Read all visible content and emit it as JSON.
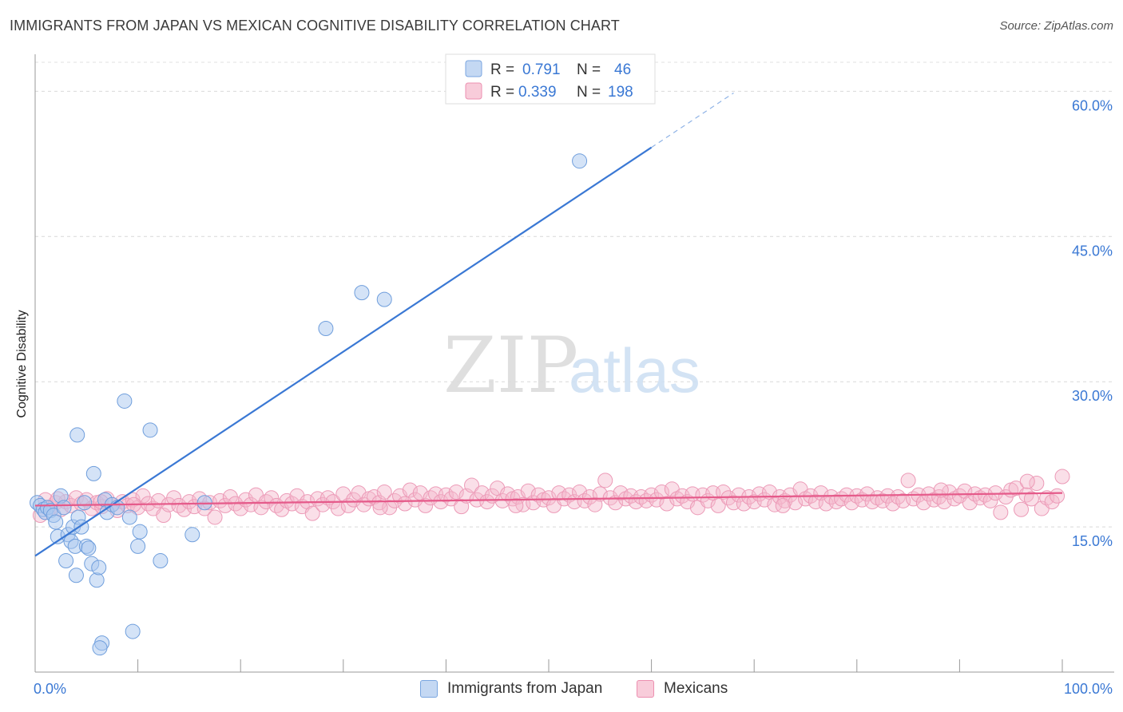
{
  "title": "IMMIGRANTS FROM JAPAN VS MEXICAN COGNITIVE DISABILITY CORRELATION CHART",
  "source": "Source: ZipAtlas.com",
  "watermark": {
    "zip": "ZIP",
    "atlas": "atlas"
  },
  "colors": {
    "blue": "#3a78d4",
    "blue_fill": "#a9c8f0",
    "pink": "#e55a8a",
    "pink_fill": "#f5b8cc",
    "axis_text": "#3a78d4",
    "grid": "#d8d8d8"
  },
  "legend_top": [
    {
      "r_label": "R =",
      "r_value": "0.791",
      "n_label": "N =",
      "n_value": "46"
    },
    {
      "r_label": "R =",
      "r_value": "0.339",
      "n_label": "N =",
      "n_value": "198"
    }
  ],
  "chart_data": {
    "type": "scatter",
    "title": "IMMIGRANTS FROM JAPAN VS MEXICAN COGNITIVE DISABILITY CORRELATION CHART",
    "xlabel": "",
    "ylabel": "Cognitive Disability",
    "xlim": [
      0,
      100
    ],
    "ylim": [
      0,
      63
    ],
    "x_tick_labels": [
      "0.0%",
      "100.0%"
    ],
    "y_ticks": [
      15,
      30,
      45,
      60
    ],
    "y_tick_labels": [
      "15.0%",
      "30.0%",
      "45.0%",
      "60.0%"
    ],
    "legend": [
      "Immigrants from Japan",
      "Mexicans"
    ],
    "series": [
      {
        "name": "Immigrants from Japan",
        "color": "#3a78d4",
        "r": 0.791,
        "n": 46,
        "trend": {
          "x0": 0,
          "y0": 12.0,
          "x1": 60,
          "y1": 54.2,
          "dash_to_x": 68
        },
        "points": [
          [
            0.2,
            17.5
          ],
          [
            0.5,
            17.2
          ],
          [
            0.8,
            16.8
          ],
          [
            1.0,
            16.5
          ],
          [
            1.2,
            17.0
          ],
          [
            1.5,
            16.7
          ],
          [
            1.8,
            16.2
          ],
          [
            2.0,
            15.5
          ],
          [
            2.2,
            14.0
          ],
          [
            2.5,
            18.2
          ],
          [
            2.8,
            17.0
          ],
          [
            3.0,
            11.5
          ],
          [
            3.2,
            14.2
          ],
          [
            3.5,
            13.5
          ],
          [
            3.7,
            15.0
          ],
          [
            3.9,
            13.0
          ],
          [
            4.0,
            10.0
          ],
          [
            4.2,
            16.0
          ],
          [
            4.5,
            15.0
          ],
          [
            4.8,
            17.5
          ],
          [
            5.0,
            13.0
          ],
          [
            5.2,
            12.8
          ],
          [
            5.5,
            11.2
          ],
          [
            5.7,
            20.5
          ],
          [
            6.0,
            9.5
          ],
          [
            6.2,
            10.8
          ],
          [
            6.5,
            3.0
          ],
          [
            6.8,
            17.8
          ],
          [
            7.0,
            16.5
          ],
          [
            7.5,
            17.3
          ],
          [
            8.0,
            17.0
          ],
          [
            8.7,
            28.0
          ],
          [
            9.2,
            16.0
          ],
          [
            9.5,
            4.2
          ],
          [
            10.0,
            13.0
          ],
          [
            10.2,
            14.5
          ],
          [
            11.2,
            25.0
          ],
          [
            12.2,
            11.5
          ],
          [
            15.3,
            14.2
          ],
          [
            16.5,
            17.5
          ],
          [
            28.3,
            35.5
          ],
          [
            31.8,
            39.2
          ],
          [
            34.0,
            38.5
          ],
          [
            53.0,
            52.8
          ],
          [
            4.1,
            24.5
          ],
          [
            6.3,
            2.5
          ]
        ]
      },
      {
        "name": "Mexicans",
        "color": "#e55a8a",
        "r": 0.339,
        "n": 198,
        "trend": {
          "x0": 0,
          "y0": 17.2,
          "x1": 100,
          "y1": 18.5
        },
        "points": [
          [
            0.5,
            16.2
          ],
          [
            1.0,
            17.8
          ],
          [
            1.5,
            17.0
          ],
          [
            2.0,
            17.5
          ],
          [
            2.5,
            16.8
          ],
          [
            3.0,
            17.6
          ],
          [
            3.5,
            17.2
          ],
          [
            4.0,
            18.0
          ],
          [
            4.5,
            17.4
          ],
          [
            5.0,
            17.8
          ],
          [
            5.5,
            16.9
          ],
          [
            6.0,
            17.5
          ],
          [
            6.5,
            17.1
          ],
          [
            7.0,
            17.9
          ],
          [
            7.5,
            17.3
          ],
          [
            8.0,
            16.7
          ],
          [
            8.5,
            17.6
          ],
          [
            9.0,
            17.2
          ],
          [
            9.5,
            17.8
          ],
          [
            10.0,
            17.0
          ],
          [
            10.5,
            18.2
          ],
          [
            11.0,
            17.4
          ],
          [
            11.5,
            16.9
          ],
          [
            12.0,
            17.7
          ],
          [
            12.5,
            16.2
          ],
          [
            13.0,
            17.3
          ],
          [
            13.5,
            18.0
          ],
          [
            14.0,
            17.2
          ],
          [
            14.5,
            16.8
          ],
          [
            15.0,
            17.6
          ],
          [
            15.5,
            17.1
          ],
          [
            16.0,
            17.9
          ],
          [
            16.5,
            16.9
          ],
          [
            17.0,
            17.5
          ],
          [
            17.5,
            16.0
          ],
          [
            18.0,
            17.7
          ],
          [
            18.5,
            17.2
          ],
          [
            19.0,
            18.1
          ],
          [
            19.5,
            17.4
          ],
          [
            20.0,
            16.9
          ],
          [
            20.5,
            17.8
          ],
          [
            21.0,
            17.3
          ],
          [
            21.5,
            18.3
          ],
          [
            22.0,
            17.0
          ],
          [
            22.5,
            17.6
          ],
          [
            23.0,
            18.0
          ],
          [
            23.5,
            17.2
          ],
          [
            24.0,
            16.8
          ],
          [
            24.5,
            17.7
          ],
          [
            25.0,
            17.4
          ],
          [
            25.5,
            18.2
          ],
          [
            26.0,
            17.1
          ],
          [
            26.5,
            17.6
          ],
          [
            27.0,
            16.4
          ],
          [
            27.5,
            17.9
          ],
          [
            28.0,
            17.3
          ],
          [
            28.5,
            18.0
          ],
          [
            29.0,
            17.6
          ],
          [
            29.5,
            16.9
          ],
          [
            30.0,
            18.4
          ],
          [
            30.5,
            17.2
          ],
          [
            31.0,
            17.8
          ],
          [
            31.5,
            18.5
          ],
          [
            32.0,
            17.3
          ],
          [
            32.5,
            17.9
          ],
          [
            33.0,
            18.1
          ],
          [
            33.5,
            17.5
          ],
          [
            34.0,
            18.6
          ],
          [
            34.5,
            17.0
          ],
          [
            35.0,
            17.7
          ],
          [
            35.5,
            18.2
          ],
          [
            36.0,
            17.4
          ],
          [
            36.5,
            18.8
          ],
          [
            37.0,
            17.8
          ],
          [
            37.5,
            18.5
          ],
          [
            38.0,
            17.2
          ],
          [
            38.5,
            18.0
          ],
          [
            39.0,
            18.4
          ],
          [
            39.5,
            17.6
          ],
          [
            40.0,
            18.3
          ],
          [
            40.5,
            17.9
          ],
          [
            41.0,
            18.6
          ],
          [
            41.5,
            17.1
          ],
          [
            42.0,
            18.2
          ],
          [
            42.5,
            19.3
          ],
          [
            43.0,
            17.8
          ],
          [
            43.5,
            18.5
          ],
          [
            44.0,
            17.6
          ],
          [
            44.5,
            18.2
          ],
          [
            45.0,
            19.0
          ],
          [
            45.5,
            17.7
          ],
          [
            46.0,
            18.4
          ],
          [
            46.5,
            17.9
          ],
          [
            47.0,
            18.1
          ],
          [
            47.5,
            17.3
          ],
          [
            48.0,
            18.7
          ],
          [
            48.5,
            17.5
          ],
          [
            49.0,
            18.3
          ],
          [
            49.5,
            17.8
          ],
          [
            50.0,
            18.0
          ],
          [
            50.5,
            17.2
          ],
          [
            51.0,
            18.5
          ],
          [
            51.5,
            17.9
          ],
          [
            52.0,
            18.3
          ],
          [
            52.5,
            17.6
          ],
          [
            53.0,
            18.6
          ],
          [
            53.5,
            17.7
          ],
          [
            54.0,
            18.1
          ],
          [
            54.5,
            17.3
          ],
          [
            55.0,
            18.4
          ],
          [
            55.5,
            19.8
          ],
          [
            56.0,
            18.0
          ],
          [
            56.5,
            17.5
          ],
          [
            57.0,
            18.5
          ],
          [
            57.5,
            17.9
          ],
          [
            58.0,
            18.2
          ],
          [
            58.5,
            17.6
          ],
          [
            59.0,
            18.1
          ],
          [
            59.5,
            17.7
          ],
          [
            60.0,
            18.3
          ],
          [
            60.5,
            17.8
          ],
          [
            61.0,
            18.6
          ],
          [
            61.5,
            17.4
          ],
          [
            62.0,
            18.9
          ],
          [
            62.5,
            17.9
          ],
          [
            63.0,
            18.2
          ],
          [
            63.5,
            17.6
          ],
          [
            64.0,
            18.4
          ],
          [
            64.5,
            17.0
          ],
          [
            65.0,
            18.3
          ],
          [
            65.5,
            17.7
          ],
          [
            66.0,
            18.5
          ],
          [
            66.5,
            17.2
          ],
          [
            67.0,
            18.6
          ],
          [
            67.5,
            18.0
          ],
          [
            68.0,
            17.5
          ],
          [
            68.5,
            18.3
          ],
          [
            69.0,
            17.4
          ],
          [
            69.5,
            18.1
          ],
          [
            70.0,
            17.6
          ],
          [
            70.5,
            18.4
          ],
          [
            71.0,
            17.8
          ],
          [
            71.5,
            18.6
          ],
          [
            72.0,
            17.3
          ],
          [
            72.5,
            18.1
          ],
          [
            73.0,
            17.7
          ],
          [
            73.5,
            18.3
          ],
          [
            74.0,
            17.5
          ],
          [
            74.5,
            18.9
          ],
          [
            75.0,
            17.9
          ],
          [
            75.5,
            18.2
          ],
          [
            76.0,
            17.6
          ],
          [
            76.5,
            18.5
          ],
          [
            77.0,
            17.4
          ],
          [
            77.5,
            18.1
          ],
          [
            78.0,
            17.6
          ],
          [
            78.5,
            17.9
          ],
          [
            79.0,
            18.3
          ],
          [
            79.5,
            17.5
          ],
          [
            80.0,
            18.2
          ],
          [
            80.5,
            17.8
          ],
          [
            81.0,
            18.4
          ],
          [
            81.5,
            17.6
          ],
          [
            82.0,
            18.0
          ],
          [
            82.5,
            17.7
          ],
          [
            83.0,
            18.2
          ],
          [
            83.5,
            17.4
          ],
          [
            84.0,
            18.1
          ],
          [
            84.5,
            17.7
          ],
          [
            85.0,
            19.8
          ],
          [
            85.5,
            17.9
          ],
          [
            86.0,
            18.3
          ],
          [
            86.5,
            17.5
          ],
          [
            87.0,
            18.4
          ],
          [
            87.5,
            17.8
          ],
          [
            88.0,
            18.1
          ],
          [
            88.5,
            17.6
          ],
          [
            89.0,
            18.6
          ],
          [
            89.5,
            17.9
          ],
          [
            90.0,
            18.2
          ],
          [
            90.5,
            18.7
          ],
          [
            91.0,
            17.5
          ],
          [
            91.5,
            18.4
          ],
          [
            92.0,
            18.0
          ],
          [
            92.5,
            18.3
          ],
          [
            93.0,
            17.7
          ],
          [
            93.5,
            18.5
          ],
          [
            94.0,
            16.5
          ],
          [
            94.5,
            18.1
          ],
          [
            95.0,
            18.8
          ],
          [
            95.5,
            19.0
          ],
          [
            96.0,
            16.8
          ],
          [
            96.5,
            18.3
          ],
          [
            97.0,
            17.9
          ],
          [
            97.5,
            19.5
          ],
          [
            98.0,
            16.9
          ],
          [
            98.5,
            18.0
          ],
          [
            99.0,
            17.6
          ],
          [
            99.5,
            18.2
          ],
          [
            100.0,
            20.2
          ],
          [
            2.2,
            17.9
          ],
          [
            6.4,
            17.6
          ],
          [
            9.6,
            17.3
          ],
          [
            33.6,
            17.0
          ],
          [
            46.8,
            17.2
          ],
          [
            72.8,
            17.2
          ],
          [
            88.2,
            18.8
          ],
          [
            96.6,
            19.7
          ]
        ]
      }
    ]
  },
  "legend_bottom": [
    {
      "label": "Immigrants from Japan"
    },
    {
      "label": "Mexicans"
    }
  ]
}
